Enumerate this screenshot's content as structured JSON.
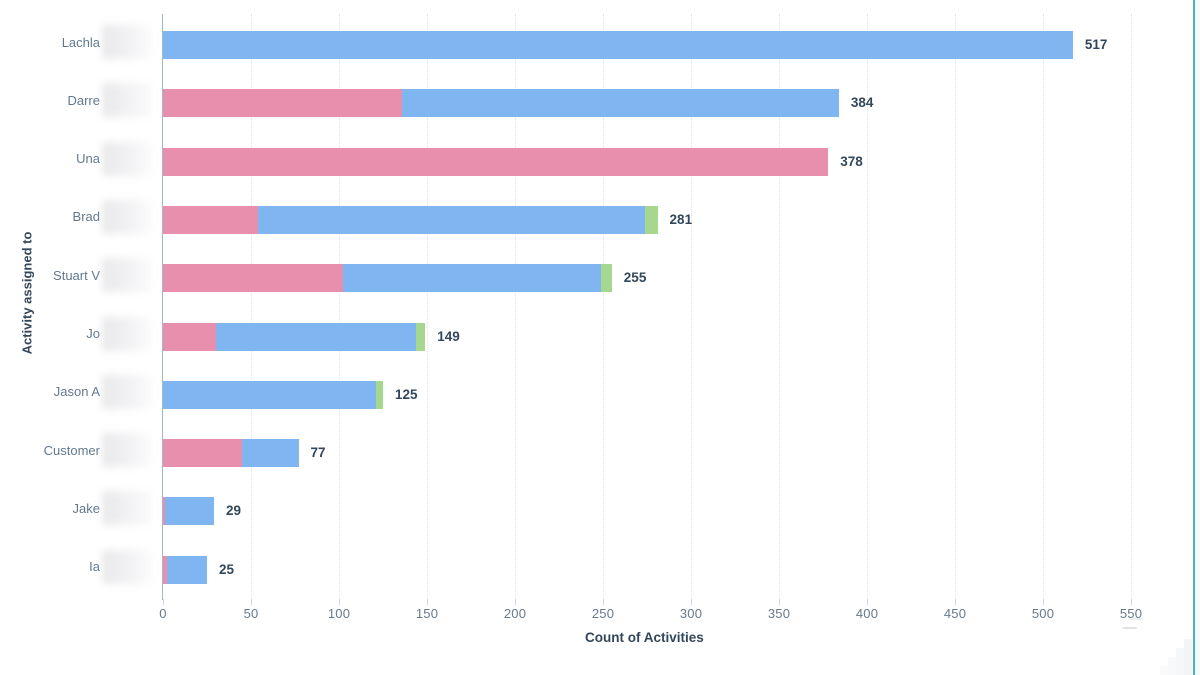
{
  "window": {
    "right_edge_accent_color": "#49b2c6"
  },
  "chart_data": {
    "type": "bar",
    "orientation": "horizontal",
    "stacked": true,
    "title": "",
    "xlabel": "Count of Activities",
    "ylabel": "Activity assigned to",
    "xlim": [
      0,
      550
    ],
    "xticks": [
      0,
      50,
      100,
      150,
      200,
      250,
      300,
      350,
      400,
      450,
      500,
      550
    ],
    "grid": "vertical-dotted",
    "legend_position": "none",
    "categories": [
      {
        "label": "Lachla",
        "redacted": true
      },
      {
        "label": "Darre",
        "redacted": true
      },
      {
        "label": "Una",
        "redacted": true
      },
      {
        "label": "Brad",
        "redacted": true
      },
      {
        "label": "Stuart V",
        "redacted": true
      },
      {
        "label": "Jo",
        "redacted": true
      },
      {
        "label": "Jason A",
        "redacted": true
      },
      {
        "label": "Customer",
        "redacted": true
      },
      {
        "label": "Jake",
        "redacted": true
      },
      {
        "label": "Ia",
        "redacted": true
      }
    ],
    "series": [
      {
        "name": "activity-type-pink",
        "color": "#e88fae",
        "values": [
          0,
          136,
          378,
          54,
          102,
          30,
          0,
          45,
          1,
          2
        ]
      },
      {
        "name": "activity-type-blue",
        "color": "#7fb5f0",
        "values": [
          517,
          248,
          0,
          220,
          147,
          114,
          121,
          32,
          28,
          23
        ]
      },
      {
        "name": "activity-type-green",
        "color": "#a5d78f",
        "values": [
          0,
          0,
          0,
          7,
          6,
          5,
          4,
          0,
          0,
          0
        ]
      }
    ],
    "totals": [
      517,
      384,
      378,
      281,
      255,
      149,
      125,
      77,
      29,
      25
    ],
    "colors": {
      "value_label": "#33475b",
      "tick_label": "#68798f",
      "axis_title": "#33475b",
      "gridline": "#dce4ee",
      "axis_line": "#a3b7c9"
    }
  }
}
